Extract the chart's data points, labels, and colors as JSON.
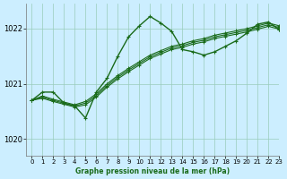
{
  "title": "Graphe pression niveau de la mer (hPa)",
  "bg_color": "#cceeff",
  "line_color": "#1a6b1a",
  "grid_color": "#99ccbb",
  "xlim": [
    -0.5,
    23
  ],
  "ylim": [
    1019.7,
    1022.45
  ],
  "yticks": [
    1020,
    1021,
    1022
  ],
  "xticks": [
    0,
    1,
    2,
    3,
    4,
    5,
    6,
    7,
    8,
    9,
    10,
    11,
    12,
    13,
    14,
    15,
    16,
    17,
    18,
    19,
    20,
    21,
    22,
    23
  ],
  "series_main": [
    1020.7,
    1020.85,
    1020.85,
    1020.65,
    1020.6,
    1020.38,
    1020.85,
    1021.1,
    1021.5,
    1021.85,
    1022.05,
    1022.22,
    1022.1,
    1021.95,
    1021.62,
    1021.58,
    1021.52,
    1021.58,
    1021.68,
    1021.78,
    1021.92,
    1022.08,
    1022.12,
    1021.98
  ],
  "series_lines": [
    [
      1020.7,
      1020.78,
      1020.72,
      1020.67,
      1020.62,
      1020.68,
      1020.82,
      1021.0,
      1021.15,
      1021.28,
      1021.4,
      1021.52,
      1021.6,
      1021.68,
      1021.72,
      1021.78,
      1021.82,
      1021.88,
      1021.92,
      1021.96,
      1022.0,
      1022.05,
      1022.1,
      1022.05
    ],
    [
      1020.7,
      1020.76,
      1020.7,
      1020.65,
      1020.6,
      1020.65,
      1020.79,
      1020.97,
      1021.12,
      1021.25,
      1021.37,
      1021.49,
      1021.57,
      1021.65,
      1021.69,
      1021.75,
      1021.79,
      1021.85,
      1021.89,
      1021.93,
      1021.97,
      1022.02,
      1022.07,
      1022.02
    ],
    [
      1020.7,
      1020.74,
      1020.68,
      1020.63,
      1020.58,
      1020.62,
      1020.76,
      1020.94,
      1021.09,
      1021.22,
      1021.34,
      1021.46,
      1021.54,
      1021.62,
      1021.66,
      1021.72,
      1021.76,
      1021.82,
      1021.86,
      1021.9,
      1021.94,
      1021.99,
      1022.04,
      1021.99
    ]
  ]
}
